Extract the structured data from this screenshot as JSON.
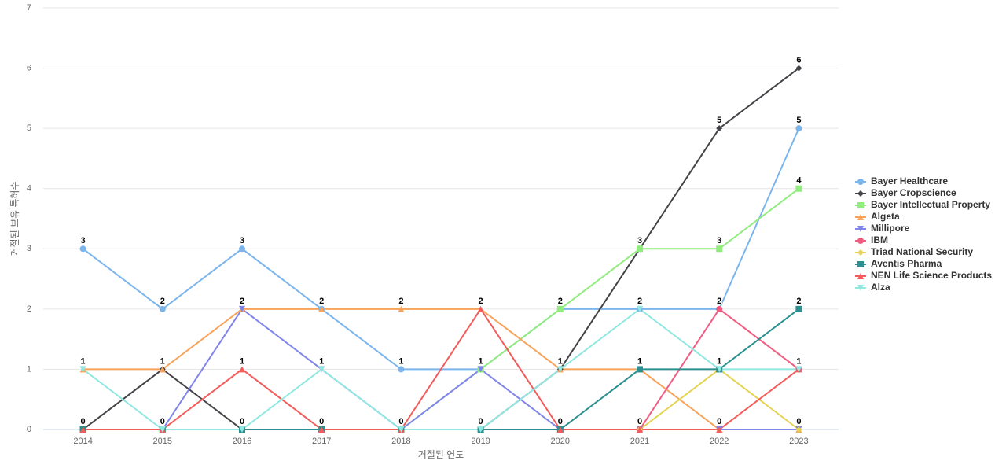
{
  "chart_data": {
    "type": "line",
    "x_label": "거절된 연도",
    "y_label": "거절된 보유 특허수",
    "categories": [
      "2014",
      "2015",
      "2016",
      "2017",
      "2018",
      "2019",
      "2020",
      "2021",
      "2022",
      "2023"
    ],
    "ylim": [
      0,
      7
    ],
    "yticks": [
      0,
      1,
      2,
      3,
      4,
      5,
      6,
      7
    ],
    "grid": true,
    "legend": "right",
    "data_labels": true,
    "series": [
      {
        "name": "Bayer Healthcare",
        "color": "#7cb5ec",
        "marker": "circle",
        "values": [
          3,
          2,
          3,
          2,
          1,
          1,
          2,
          2,
          2,
          5
        ]
      },
      {
        "name": "Bayer Cropscience",
        "color": "#434348",
        "marker": "diamond",
        "values": [
          0,
          1,
          0,
          0,
          0,
          0,
          1,
          3,
          5,
          6
        ]
      },
      {
        "name": "Bayer Intellectual Property",
        "color": "#90ed7d",
        "marker": "square",
        "values": [
          0,
          0,
          0,
          0,
          0,
          1,
          2,
          3,
          3,
          4
        ]
      },
      {
        "name": "Algeta",
        "color": "#f7a35c",
        "marker": "triangle",
        "values": [
          1,
          1,
          2,
          2,
          2,
          2,
          1,
          1,
          0,
          0
        ]
      },
      {
        "name": "Millipore",
        "color": "#8085e9",
        "marker": "triangle-down",
        "values": [
          0,
          0,
          2,
          1,
          0,
          1,
          0,
          0,
          0,
          0
        ]
      },
      {
        "name": "IBM",
        "color": "#f15c80",
        "marker": "circle",
        "values": [
          0,
          0,
          0,
          0,
          0,
          0,
          0,
          0,
          2,
          1
        ]
      },
      {
        "name": "Triad National Security",
        "color": "#e4d354",
        "marker": "diamond",
        "values": [
          0,
          0,
          0,
          0,
          0,
          0,
          0,
          0,
          1,
          0
        ]
      },
      {
        "name": "Aventis Pharma",
        "color": "#2b908f",
        "marker": "square",
        "values": [
          0,
          0,
          0,
          0,
          0,
          0,
          0,
          1,
          1,
          2
        ]
      },
      {
        "name": "NEN Life Science Products",
        "color": "#f45b5b",
        "marker": "triangle",
        "values": [
          0,
          0,
          1,
          0,
          0,
          2,
          0,
          0,
          0,
          1
        ]
      },
      {
        "name": "Alza",
        "color": "#91e8e1",
        "marker": "triangle-down",
        "values": [
          1,
          0,
          0,
          1,
          0,
          0,
          1,
          2,
          1,
          1
        ]
      }
    ]
  }
}
